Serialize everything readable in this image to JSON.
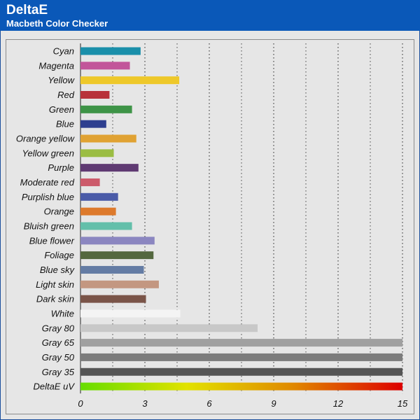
{
  "header": {
    "title": "DeltaE",
    "subtitle": "Macbeth Color Checker"
  },
  "chart_data": {
    "type": "bar",
    "orientation": "horizontal",
    "title": "DeltaE",
    "subtitle": "Macbeth Color Checker",
    "xlim": [
      0,
      15
    ],
    "xticks": [
      0,
      3,
      6,
      9,
      12,
      15
    ],
    "grid": "vertical dotted",
    "categories": [
      "Cyan",
      "Magenta",
      "Yellow",
      "Red",
      "Green",
      "Blue",
      "Orange yellow",
      "Yellow green",
      "Purple",
      "Moderate red",
      "Purplish blue",
      "Orange",
      "Bluish green",
      "Blue flower",
      "Foliage",
      "Blue sky",
      "Light skin",
      "Dark skin",
      "White",
      "Gray 80",
      "Gray 65",
      "Gray 50",
      "Gray 35",
      "DeltaE uV"
    ],
    "values": [
      2.8,
      2.3,
      4.6,
      1.35,
      2.4,
      1.2,
      2.6,
      1.55,
      2.7,
      0.9,
      1.75,
      1.65,
      2.4,
      3.45,
      3.4,
      2.95,
      3.65,
      3.05,
      4.65,
      8.25,
      15,
      15,
      15,
      15
    ],
    "colors": [
      "#1a8faa",
      "#c2559a",
      "#eec82a",
      "#b8323a",
      "#3e9447",
      "#2e3f8f",
      "#e0a233",
      "#9bbd43",
      "#5f3a72",
      "#cc5b6b",
      "#4a5ba8",
      "#dd7a2c",
      "#63bfaa",
      "#8b86c0",
      "#54683f",
      "#647ca4",
      "#c39781",
      "#7a5448",
      "#f4f4f4",
      "#c8c8c8",
      "#a0a0a0",
      "#7c7c7c",
      "#555555",
      "gradient"
    ],
    "gradient_colors": [
      "#66dd00",
      "#e2e200",
      "#e08800",
      "#dd0000"
    ]
  }
}
